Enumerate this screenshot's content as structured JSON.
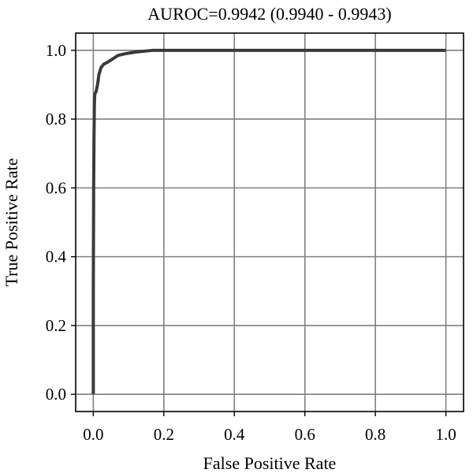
{
  "chart_data": {
    "type": "line",
    "title": "AUROC=0.9942 (0.9940 - 0.9943)",
    "xlabel": "False Positive Rate",
    "ylabel": "True Positive Rate",
    "xlim": [
      -0.05,
      1.05
    ],
    "ylim": [
      -0.05,
      1.05
    ],
    "xticks": [
      0.0,
      0.2,
      0.4,
      0.6,
      0.8,
      1.0
    ],
    "yticks": [
      0.0,
      0.2,
      0.4,
      0.6,
      0.8,
      1.0
    ],
    "xtick_labels": [
      "0.0",
      "0.2",
      "0.4",
      "0.6",
      "0.8",
      "1.0"
    ],
    "ytick_labels": [
      "0.0",
      "0.2",
      "0.4",
      "0.6",
      "0.8",
      "1.0"
    ],
    "grid": true,
    "line_color": "#3a3a3a",
    "grid_color": "#808080",
    "series": [
      {
        "x": [
          0.0,
          0.0,
          0.001,
          0.002,
          0.003,
          0.004,
          0.005,
          0.008,
          0.012,
          0.016,
          0.022,
          0.03,
          0.04,
          0.055,
          0.07,
          0.09,
          0.12,
          0.15,
          0.17,
          0.25,
          0.5,
          0.75,
          1.0
        ],
        "y": [
          0.0,
          0.3,
          0.6,
          0.75,
          0.84,
          0.87,
          0.875,
          0.88,
          0.9,
          0.93,
          0.95,
          0.96,
          0.965,
          0.975,
          0.985,
          0.99,
          0.995,
          0.998,
          1.0,
          1.0,
          1.0,
          1.0,
          1.0
        ]
      }
    ]
  }
}
